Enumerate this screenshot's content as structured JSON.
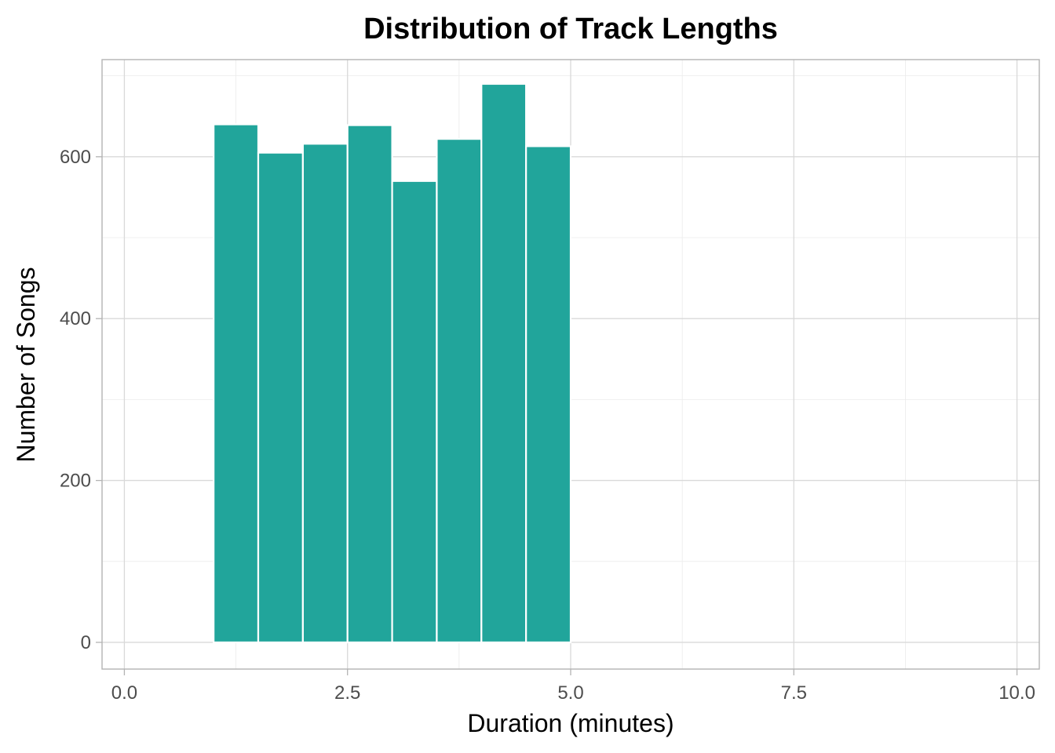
{
  "chart_data": {
    "type": "bar",
    "subtype": "histogram",
    "title": "Distribution of Track Lengths",
    "xlabel": "Duration (minutes)",
    "ylabel": "Number of Songs",
    "xlim": [
      -0.25,
      10.25
    ],
    "ylim": [
      -33,
      720
    ],
    "x_ticks": [
      0,
      2.5,
      5,
      7.5,
      10
    ],
    "x_tick_labels": [
      "0.0",
      "2.5",
      "5.0",
      "7.5",
      "10.0"
    ],
    "y_ticks": [
      0,
      200,
      400,
      600
    ],
    "y_tick_labels": [
      "0",
      "200",
      "400",
      "600"
    ],
    "bin_width": 0.5,
    "bins": [
      {
        "start": 1.0,
        "end": 1.5,
        "count": 640
      },
      {
        "start": 1.5,
        "end": 2.0,
        "count": 605
      },
      {
        "start": 2.0,
        "end": 2.5,
        "count": 616
      },
      {
        "start": 2.5,
        "end": 3.0,
        "count": 639
      },
      {
        "start": 3.0,
        "end": 3.5,
        "count": 570
      },
      {
        "start": 3.5,
        "end": 4.0,
        "count": 622
      },
      {
        "start": 4.0,
        "end": 4.5,
        "count": 690
      },
      {
        "start": 4.5,
        "end": 5.0,
        "count": 613
      }
    ],
    "grid": true,
    "legend": "none",
    "bar_color": "#21a59b",
    "bar_edge_color": "#ffffff"
  }
}
